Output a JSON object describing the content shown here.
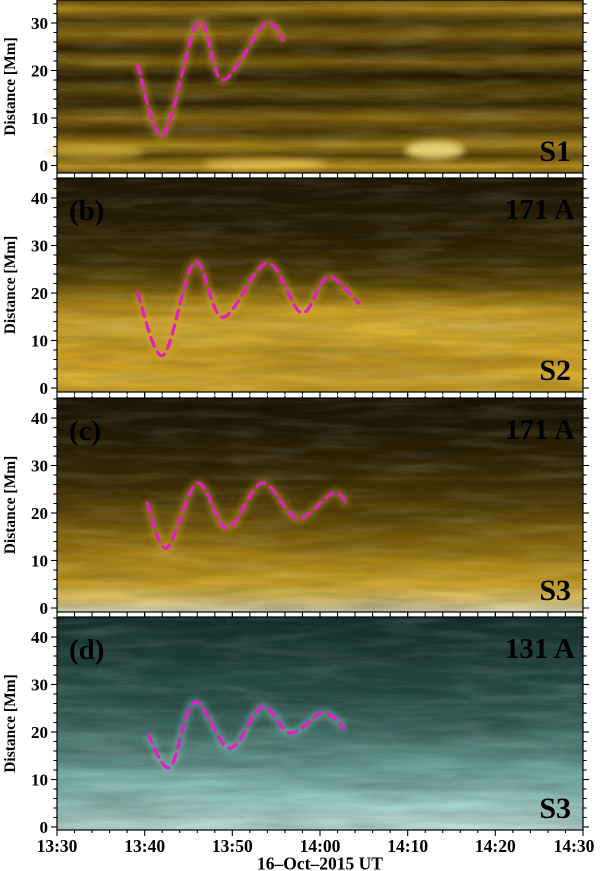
{
  "figure": {
    "x_axis": {
      "label": "16–Oct–2015  UT",
      "tick_labels": [
        "13:30",
        "13:40",
        "13:50",
        "14:00",
        "14:10",
        "14:20",
        "14:30"
      ],
      "range_minutes_after_13_30": [
        0,
        60
      ],
      "minor_tick_step_min": 2
    },
    "y_axis": {
      "label": "Distance [Mm]",
      "tick_values": [
        0,
        10,
        20,
        30,
        40
      ],
      "minor_tick_step_mm": 2
    }
  },
  "chart_data": [
    {
      "type": "heatmap",
      "panel_label": "",
      "wavelength_label": "",
      "slit_label": "S1",
      "colormap": "gold",
      "y_range_mm_visible": [
        0,
        34.8
      ],
      "y_ticks_visible": [
        0,
        10,
        20,
        30
      ],
      "oscillation_track": {
        "name": "dashed oscillation fit",
        "time_min_after_13_30": [
          9.2,
          12.1,
          16.1,
          18.9,
          23.7,
          25.8
        ],
        "distance_mm": [
          21.2,
          6.4,
          30.2,
          18.0,
          29.8,
          26.4
        ]
      }
    },
    {
      "type": "heatmap",
      "panel_label": "(b)",
      "wavelength_label": "171 A",
      "slit_label": "S2",
      "colormap": "gold",
      "y_range_mm_visible": [
        0,
        44.2
      ],
      "y_ticks_visible": [
        0,
        10,
        20,
        30,
        40
      ],
      "oscillation_track": {
        "name": "dashed oscillation fit",
        "time_min_after_13_30": [
          9.2,
          12.1,
          15.7,
          18.9,
          24.0,
          27.9,
          30.9,
          34.4
        ],
        "distance_mm": [
          20.0,
          6.9,
          26.5,
          14.9,
          26.3,
          15.8,
          23.4,
          17.9
        ]
      }
    },
    {
      "type": "heatmap",
      "panel_label": "(c)",
      "wavelength_label": "171 A",
      "slit_label": "S3",
      "colormap": "gold",
      "y_range_mm_visible": [
        0,
        44.2
      ],
      "y_ticks_visible": [
        0,
        10,
        20,
        30,
        40
      ],
      "oscillation_track": {
        "name": "dashed oscillation fit",
        "time_min_after_13_30": [
          10.3,
          12.5,
          16.0,
          19.4,
          23.4,
          27.4,
          31.5,
          33.1
        ],
        "distance_mm": [
          22.1,
          12.6,
          26.3,
          16.8,
          26.3,
          18.9,
          24.2,
          21.7
        ]
      }
    },
    {
      "type": "heatmap",
      "panel_label": "(d)",
      "wavelength_label": "131 A",
      "slit_label": "S3",
      "colormap": "teal",
      "y_range_mm_visible": [
        0,
        44.2
      ],
      "y_ticks_visible": [
        0,
        10,
        20,
        30,
        40
      ],
      "oscillation_track": {
        "name": "dashed oscillation fit",
        "time_min_after_13_30": [
          10.4,
          12.9,
          15.7,
          19.7,
          23.4,
          26.6,
          30.3,
          32.8
        ],
        "distance_mm": [
          19.4,
          12.6,
          26.3,
          16.6,
          25.3,
          19.8,
          24.0,
          20.8
        ]
      }
    }
  ],
  "style": {
    "track_color": "#e31ec4",
    "axis_color": "#000000",
    "background": "#ffffff",
    "label_white": "#ffffff",
    "slit_label_colors": [
      "#ffffff",
      "#ffffff",
      "#ffffff",
      "#161616"
    ],
    "loop_echo_colors": [
      "#e0b12a",
      "#e0b12a",
      "#e0b12a",
      "#8fd0c9"
    ],
    "panel_gradients": [
      [
        [
          0,
          "#7a5f10"
        ],
        [
          0.05,
          "#b98e1a"
        ],
        [
          0.12,
          "#514009"
        ],
        [
          0.2,
          "#a37d15"
        ],
        [
          0.28,
          "#3b2d07"
        ],
        [
          0.36,
          "#8f6f12"
        ],
        [
          0.44,
          "#2c2205"
        ],
        [
          0.52,
          "#6f550c"
        ],
        [
          0.6,
          "#433408"
        ],
        [
          0.68,
          "#9a7814"
        ],
        [
          0.76,
          "#574309"
        ],
        [
          0.84,
          "#c79d1e"
        ],
        [
          0.9,
          "#67500b"
        ],
        [
          0.96,
          "#e0af25"
        ],
        [
          1,
          "#8f6f12"
        ]
      ],
      [
        [
          0,
          "#241c05"
        ],
        [
          0.12,
          "#2a2106"
        ],
        [
          0.27,
          "#362a07"
        ],
        [
          0.4,
          "#4a3a08"
        ],
        [
          0.5,
          "#6f560b"
        ],
        [
          0.56,
          "#ab8516"
        ],
        [
          0.62,
          "#e5b429"
        ],
        [
          0.7,
          "#f2c73c"
        ],
        [
          0.78,
          "#eaba2c"
        ],
        [
          0.86,
          "#e6b226"
        ],
        [
          0.93,
          "#f0c138"
        ],
        [
          1,
          "#eab92d"
        ]
      ],
      [
        [
          0,
          "#211a05"
        ],
        [
          0.15,
          "#292006"
        ],
        [
          0.3,
          "#3a2d07"
        ],
        [
          0.45,
          "#544109"
        ],
        [
          0.58,
          "#7a5e0d"
        ],
        [
          0.68,
          "#a37e15"
        ],
        [
          0.78,
          "#cba11f"
        ],
        [
          0.87,
          "#eabc2f"
        ],
        [
          0.94,
          "#f8dc74"
        ],
        [
          1,
          "#fdf5d2"
        ]
      ],
      [
        [
          0,
          "#1d3c39"
        ],
        [
          0.12,
          "#224541"
        ],
        [
          0.25,
          "#2a524d"
        ],
        [
          0.38,
          "#35615a"
        ],
        [
          0.5,
          "#477770"
        ],
        [
          0.62,
          "#62988f"
        ],
        [
          0.74,
          "#85c1b9"
        ],
        [
          0.84,
          "#a5ded7"
        ],
        [
          0.93,
          "#c3f1eb"
        ],
        [
          1,
          "#d9fdf8"
        ]
      ]
    ]
  }
}
